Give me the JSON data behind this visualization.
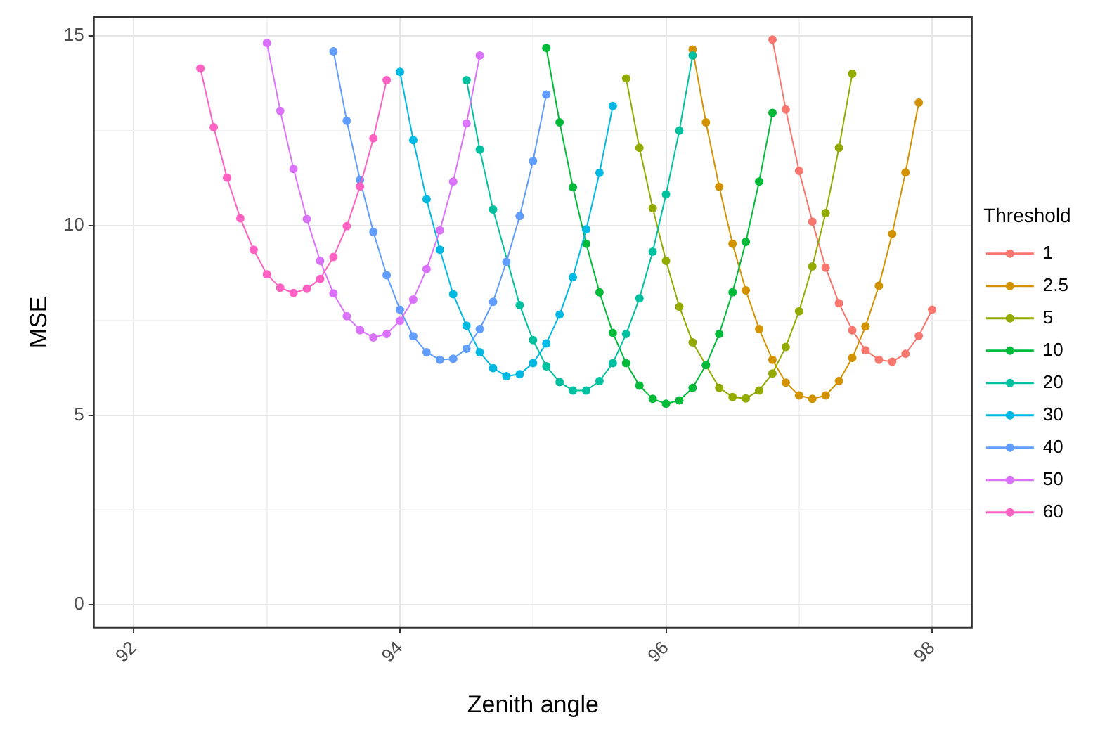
{
  "chart_data": {
    "type": "line",
    "xlabel": "Zenith angle",
    "ylabel": "MSE",
    "legend_title": "Threshold",
    "legend": "right",
    "grid": true,
    "marker": "circle",
    "line_style": "solid",
    "xlim": [
      91.7,
      98.3
    ],
    "xticks": [
      92,
      {
        "value": 93,
        "label": null
      },
      94,
      {
        "value": 95,
        "label": null
      },
      96,
      {
        "value": 97,
        "label": null
      },
      98
    ],
    "ylim": [
      -0.6,
      15.5
    ],
    "yticks": [
      0,
      {
        "value": 2.5,
        "label": null
      },
      5,
      {
        "value": 7.5,
        "label": null
      },
      10,
      {
        "value": 12.5,
        "label": null
      },
      15
    ],
    "series": [
      {
        "name": "1",
        "color": "#f8766d",
        "x": [
          96.8,
          96.9,
          97.0,
          97.1,
          97.2,
          97.3,
          97.4,
          97.5,
          97.6,
          97.7,
          97.8,
          97.9,
          98.0
        ],
        "values": [
          14.9,
          13.06,
          11.44,
          10.1,
          8.89,
          7.95,
          7.24,
          6.71,
          6.46,
          6.41,
          6.62,
          7.09,
          7.78
        ]
      },
      {
        "name": "2.5",
        "color": "#d39200",
        "x": [
          96.2,
          96.3,
          96.4,
          96.5,
          96.6,
          96.7,
          96.8,
          96.9,
          97.0,
          97.1,
          97.2,
          97.3,
          97.4,
          97.5,
          97.6,
          97.7,
          97.8,
          97.9
        ],
        "values": [
          14.64,
          12.72,
          11.02,
          9.52,
          8.29,
          7.27,
          6.46,
          5.86,
          5.52,
          5.43,
          5.52,
          5.9,
          6.51,
          7.34,
          8.41,
          9.78,
          11.4,
          13.24
        ]
      },
      {
        "name": "5",
        "color": "#93aa00",
        "x": [
          95.7,
          95.8,
          95.9,
          96.0,
          96.1,
          96.2,
          96.3,
          96.4,
          96.5,
          96.6,
          96.7,
          96.8,
          96.9,
          97.0,
          97.1,
          97.2,
          97.3,
          97.4
        ],
        "values": [
          13.88,
          12.05,
          10.46,
          9.07,
          7.86,
          6.92,
          null,
          5.72,
          5.48,
          5.44,
          5.65,
          6.1,
          6.8,
          7.74,
          8.92,
          10.33,
          12.05,
          14.0
        ]
      },
      {
        "name": "10",
        "color": "#00ba38",
        "x": [
          95.1,
          95.2,
          95.3,
          95.4,
          95.5,
          95.6,
          95.7,
          95.8,
          95.9,
          96.0,
          96.1,
          96.2,
          96.3,
          96.4,
          96.5,
          96.6,
          96.7,
          96.8
        ],
        "values": [
          14.68,
          12.72,
          11.01,
          9.52,
          8.24,
          7.17,
          6.37,
          5.78,
          5.43,
          5.3,
          5.39,
          5.72,
          6.32,
          7.14,
          8.24,
          9.57,
          11.16,
          12.97
        ]
      },
      {
        "name": "20",
        "color": "#00c19f",
        "x": [
          94.5,
          94.6,
          94.7,
          94.8,
          94.9,
          95.0,
          95.1,
          95.2,
          95.3,
          95.4,
          95.5,
          95.6,
          95.7,
          95.8,
          95.9,
          96.0,
          96.1,
          96.2
        ],
        "values": [
          13.83,
          12.0,
          10.42,
          null,
          7.9,
          6.98,
          6.29,
          5.87,
          5.65,
          5.65,
          5.9,
          6.37,
          7.14,
          8.08,
          9.31,
          10.82,
          12.5,
          14.48
        ]
      },
      {
        "name": "30",
        "color": "#00b9e3",
        "x": [
          94.0,
          94.1,
          94.2,
          94.3,
          94.4,
          94.5,
          94.6,
          94.7,
          94.8,
          94.9,
          95.0,
          95.1,
          95.2,
          95.3,
          95.4,
          95.5,
          95.6
        ],
        "values": [
          14.05,
          12.25,
          10.69,
          9.36,
          8.19,
          7.36,
          6.66,
          6.24,
          6.03,
          6.08,
          6.37,
          6.89,
          7.65,
          8.64,
          9.9,
          11.39,
          13.15
        ]
      },
      {
        "name": "40",
        "color": "#619cff",
        "x": [
          93.5,
          93.6,
          93.7,
          93.8,
          93.9,
          94.0,
          94.1,
          94.2,
          94.3,
          94.4,
          94.5,
          94.6,
          94.7,
          94.8,
          94.9,
          95.0,
          95.1
        ],
        "values": [
          14.59,
          12.76,
          11.2,
          9.83,
          8.69,
          7.78,
          7.08,
          6.66,
          6.46,
          6.49,
          6.75,
          7.27,
          7.99,
          9.04,
          10.25,
          11.7,
          13.45
        ]
      },
      {
        "name": "50",
        "color": "#db72fb",
        "x": [
          93.0,
          93.1,
          93.2,
          93.3,
          93.4,
          93.5,
          93.6,
          93.7,
          93.8,
          93.9,
          94.0,
          94.1,
          94.2,
          94.3,
          94.4,
          94.5,
          94.6
        ],
        "values": [
          14.81,
          13.02,
          11.49,
          10.17,
          9.07,
          8.21,
          7.61,
          7.24,
          7.05,
          7.14,
          7.49,
          8.05,
          8.85,
          9.87,
          11.16,
          12.69,
          14.48
        ]
      },
      {
        "name": "60",
        "color": "#ff61c3",
        "x": [
          92.5,
          92.6,
          92.7,
          92.8,
          92.9,
          93.0,
          93.1,
          93.2,
          93.3,
          93.4,
          93.5,
          93.6,
          93.7,
          93.8,
          93.9
        ],
        "values": [
          14.14,
          12.59,
          11.26,
          10.19,
          9.36,
          8.71,
          8.36,
          8.22,
          8.33,
          8.59,
          9.17,
          9.98,
          11.03,
          12.3,
          13.83
        ]
      }
    ]
  }
}
